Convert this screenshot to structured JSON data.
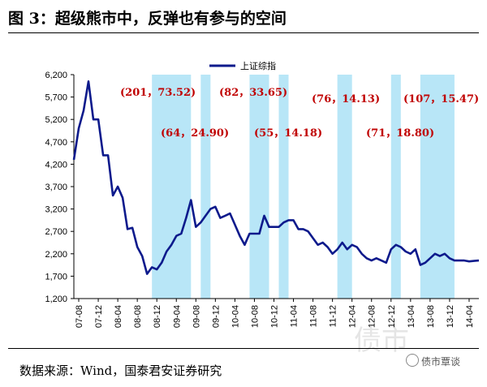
{
  "header": {
    "title": "图 3：超级熊市中，反弹也有参与的空间"
  },
  "footer": {
    "source": "数据来源：Wind，国泰君安证券研究"
  },
  "watermark": {
    "brand": "债市覃谈",
    "logo_text": "债市"
  },
  "colors": {
    "line": "#0d1a8c",
    "band": "#b8e6f7",
    "annotation": "#c00000"
  },
  "chart_data": {
    "type": "line",
    "ylim": [
      1200,
      6200
    ],
    "yticks": [
      "6,200",
      "5,700",
      "5,200",
      "4,700",
      "4,200",
      "3,700",
      "3,200",
      "2,700",
      "2,200",
      "1,700",
      "1,200"
    ],
    "ytick_values": [
      6200,
      5700,
      5200,
      4700,
      4200,
      3700,
      3200,
      2700,
      2200,
      1700,
      1200
    ],
    "xlim": [
      "2007-07",
      "2014-06"
    ],
    "xticks": [
      "07-08",
      "07-12",
      "08-04",
      "08-08",
      "08-12",
      "09-04",
      "09-08",
      "09-12",
      "10-04",
      "10-08",
      "10-12",
      "11-04",
      "11-08",
      "11-12",
      "12-04",
      "12-08",
      "12-12",
      "13-04",
      "13-08",
      "13-12",
      "14-04"
    ],
    "grid": false,
    "legend_position": "top-center",
    "series": [
      {
        "name": "上证综指",
        "x": [
          "2007-07",
          "2007-08",
          "2007-09",
          "2007-10",
          "2007-11",
          "2007-12",
          "2008-01",
          "2008-02",
          "2008-03",
          "2008-04",
          "2008-05",
          "2008-06",
          "2008-07",
          "2008-08",
          "2008-09",
          "2008-10",
          "2008-11",
          "2008-12",
          "2009-01",
          "2009-02",
          "2009-03",
          "2009-04",
          "2009-05",
          "2009-06",
          "2009-07",
          "2009-08",
          "2009-09",
          "2009-10",
          "2009-11",
          "2009-12",
          "2010-01",
          "2010-02",
          "2010-03",
          "2010-04",
          "2010-05",
          "2010-06",
          "2010-07",
          "2010-08",
          "2010-09",
          "2010-10",
          "2010-11",
          "2010-12",
          "2011-01",
          "2011-02",
          "2011-03",
          "2011-04",
          "2011-05",
          "2011-06",
          "2011-07",
          "2011-08",
          "2011-09",
          "2011-10",
          "2011-11",
          "2011-12",
          "2012-01",
          "2012-02",
          "2012-03",
          "2012-04",
          "2012-05",
          "2012-06",
          "2012-07",
          "2012-08",
          "2012-09",
          "2012-10",
          "2012-11",
          "2012-12",
          "2013-01",
          "2013-02",
          "2013-03",
          "2013-04",
          "2013-05",
          "2013-06",
          "2013-07",
          "2013-08",
          "2013-09",
          "2013-10",
          "2013-11",
          "2013-12",
          "2014-01",
          "2014-02",
          "2014-03",
          "2014-04",
          "2014-05",
          "2014-06"
        ],
        "values": [
          4300,
          5000,
          5400,
          6050,
          5200,
          5200,
          4400,
          4400,
          3500,
          3700,
          3450,
          2750,
          2780,
          2350,
          2150,
          1750,
          1900,
          1850,
          2000,
          2250,
          2400,
          2600,
          2650,
          3000,
          3400,
          2800,
          2900,
          3050,
          3200,
          3250,
          3000,
          3050,
          3100,
          2850,
          2600,
          2400,
          2650,
          2650,
          2650,
          3050,
          2800,
          2800,
          2800,
          2900,
          2950,
          2950,
          2750,
          2750,
          2700,
          2550,
          2400,
          2450,
          2350,
          2200,
          2300,
          2450,
          2300,
          2400,
          2350,
          2200,
          2100,
          2050,
          2100,
          2050,
          2000,
          2300,
          2400,
          2350,
          2250,
          2200,
          2300,
          1950,
          2000,
          2100,
          2200,
          2150,
          2200,
          2100,
          2050,
          2050,
          2050,
          2030,
          2040,
          2050
        ]
      }
    ],
    "shaded_ranges": [
      [
        "2008-11",
        "2009-07"
      ],
      [
        "2009-09",
        "2009-11"
      ],
      [
        "2010-07",
        "2010-11"
      ],
      [
        "2011-01",
        "2011-03"
      ],
      [
        "2012-01",
        "2012-04"
      ],
      [
        "2012-12",
        "2013-02"
      ],
      [
        "2013-06",
        "2014-01"
      ]
    ],
    "annotations": [
      {
        "text": "(201，73.52)"
      },
      {
        "text": "(64，24.90)"
      },
      {
        "text": "(82，33.65)"
      },
      {
        "text": "(55，14.18)"
      },
      {
        "text": "(76，14.13)"
      },
      {
        "text": "(71，18.80)"
      },
      {
        "text": "(107，15.47)"
      }
    ]
  }
}
